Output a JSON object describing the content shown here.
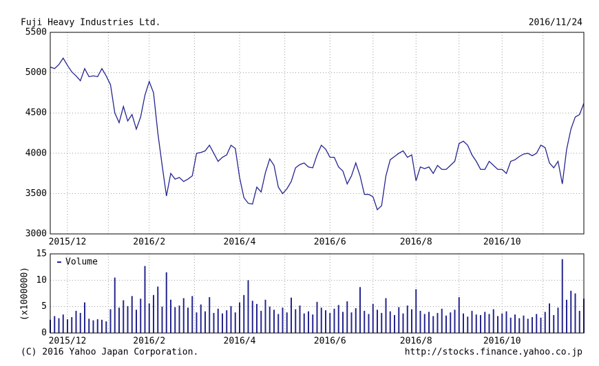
{
  "chart_data": [
    {
      "type": "line",
      "title": "Fuji Heavy Industries Ltd.",
      "subtitle": "2016/11/24",
      "categories": [
        null,
        null,
        null,
        null,
        "2015/12",
        null,
        null,
        null,
        null,
        null,
        null,
        null,
        null,
        null,
        null,
        null,
        null,
        null,
        null,
        null,
        null,
        null,
        null,
        "2016/2",
        null,
        null,
        null,
        null,
        null,
        null,
        null,
        null,
        null,
        null,
        null,
        null,
        null,
        null,
        null,
        null,
        null,
        null,
        null,
        null,
        "2016/4",
        null,
        null,
        null,
        null,
        null,
        null,
        null,
        null,
        null,
        null,
        null,
        null,
        null,
        null,
        null,
        null,
        null,
        null,
        null,
        null,
        "2016/6",
        null,
        null,
        null,
        null,
        null,
        null,
        null,
        null,
        null,
        null,
        null,
        null,
        null,
        null,
        null,
        null,
        null,
        null,
        null,
        "2016/8",
        null,
        null,
        null,
        null,
        null,
        null,
        null,
        null,
        null,
        null,
        null,
        null,
        null,
        null,
        null,
        null,
        null,
        null,
        null,
        "2016/10",
        null,
        null,
        null,
        null,
        null,
        null,
        null,
        null,
        null,
        null,
        null,
        null,
        null,
        null,
        null,
        null,
        null,
        null,
        null
      ],
      "values": [
        5070,
        5050,
        5100,
        5180,
        5090,
        5010,
        4960,
        4900,
        5050,
        4950,
        4960,
        4950,
        5050,
        4960,
        4850,
        4500,
        4380,
        4580,
        4400,
        4480,
        4300,
        4450,
        4720,
        4890,
        4750,
        4250,
        3850,
        3470,
        3750,
        3680,
        3700,
        3650,
        3680,
        3720,
        4000,
        4010,
        4030,
        4100,
        4000,
        3900,
        3950,
        3980,
        4100,
        4060,
        3700,
        3450,
        3380,
        3370,
        3580,
        3520,
        3760,
        3930,
        3850,
        3580,
        3500,
        3560,
        3650,
        3820,
        3860,
        3880,
        3830,
        3820,
        3980,
        4100,
        4050,
        3950,
        3950,
        3830,
        3780,
        3620,
        3720,
        3880,
        3720,
        3490,
        3490,
        3460,
        3300,
        3350,
        3720,
        3920,
        3960,
        4000,
        4030,
        3950,
        3980,
        3660,
        3830,
        3810,
        3830,
        3750,
        3850,
        3800,
        3800,
        3850,
        3900,
        4120,
        4150,
        4100,
        3980,
        3900,
        3800,
        3800,
        3900,
        3850,
        3800,
        3800,
        3750,
        3900,
        3920,
        3960,
        3990,
        4000,
        3970,
        4000,
        4100,
        4070,
        3880,
        3820,
        3900,
        3620,
        4050,
        4300,
        4450,
        4480,
        4620
      ],
      "color": "#24248f",
      "ylim": [
        3000,
        5500
      ],
      "yticks": [
        3000,
        3500,
        4000,
        4500,
        5000,
        5500
      ],
      "grid": true
    },
    {
      "type": "bar",
      "y_axis_label": "(x1000000)",
      "categories": [
        null,
        null,
        null,
        null,
        "2015/12",
        null,
        null,
        null,
        null,
        null,
        null,
        null,
        null,
        null,
        null,
        null,
        null,
        null,
        null,
        null,
        null,
        null,
        null,
        "2016/2",
        null,
        null,
        null,
        null,
        null,
        null,
        null,
        null,
        null,
        null,
        null,
        null,
        null,
        null,
        null,
        null,
        null,
        null,
        null,
        null,
        "2016/4",
        null,
        null,
        null,
        null,
        null,
        null,
        null,
        null,
        null,
        null,
        null,
        null,
        null,
        null,
        null,
        null,
        null,
        null,
        null,
        null,
        "2016/6",
        null,
        null,
        null,
        null,
        null,
        null,
        null,
        null,
        null,
        null,
        null,
        null,
        null,
        null,
        null,
        null,
        null,
        null,
        null,
        "2016/8",
        null,
        null,
        null,
        null,
        null,
        null,
        null,
        null,
        null,
        null,
        null,
        null,
        null,
        null,
        null,
        null,
        null,
        null,
        null,
        "2016/10",
        null,
        null,
        null,
        null,
        null,
        null,
        null,
        null,
        null,
        null,
        null,
        null,
        null,
        null,
        null,
        null,
        null,
        null,
        null
      ],
      "series": [
        {
          "name": "Volume",
          "color": "#24248f",
          "values": [
            2.5,
            3.2,
            2.8,
            3.5,
            2.6,
            3.0,
            4.2,
            3.8,
            5.8,
            2.7,
            2.4,
            2.6,
            2.5,
            2.2,
            4.5,
            10.5,
            4.8,
            6.2,
            5.1,
            7.0,
            4.4,
            6.5,
            12.7,
            5.6,
            7.2,
            8.8,
            5.0,
            11.5,
            6.3,
            4.9,
            5.2,
            6.6,
            4.8,
            7.0,
            3.9,
            5.4,
            4.1,
            6.8,
            3.8,
            4.6,
            3.7,
            4.3,
            5.1,
            3.9,
            5.8,
            7.2,
            10.0,
            6.1,
            5.5,
            4.2,
            6.3,
            5.0,
            4.4,
            3.6,
            4.8,
            3.9,
            6.7,
            4.5,
            5.2,
            3.7,
            4.1,
            3.5,
            5.9,
            4.8,
            4.3,
            3.8,
            4.6,
            5.3,
            4.0,
            6.0,
            3.9,
            4.7,
            8.7,
            4.2,
            3.6,
            5.5,
            4.4,
            3.8,
            6.6,
            4.1,
            3.4,
            4.9,
            3.7,
            5.2,
            4.5,
            8.3,
            4.2,
            3.6,
            4.0,
            3.2,
            3.8,
            4.6,
            3.3,
            3.9,
            4.4,
            6.8,
            3.7,
            3.1,
            4.2,
            3.5,
            3.4,
            4.0,
            3.6,
            4.5,
            3.2,
            3.7,
            4.1,
            2.9,
            3.5,
            2.8,
            3.3,
            2.7,
            3.0,
            3.6,
            2.9,
            4.0,
            5.6,
            3.4,
            4.8,
            14.0,
            6.3,
            8.0,
            7.5,
            4.2,
            6.5
          ]
        }
      ],
      "ylim": [
        0,
        15
      ],
      "yticks": [
        0,
        5,
        10,
        15
      ],
      "grid": true,
      "legend": "top-left"
    }
  ],
  "footer": {
    "copyright": "(C) 2016 Yahoo Japan Corporation.",
    "url": "http://stocks.finance.yahoo.co.jp"
  }
}
